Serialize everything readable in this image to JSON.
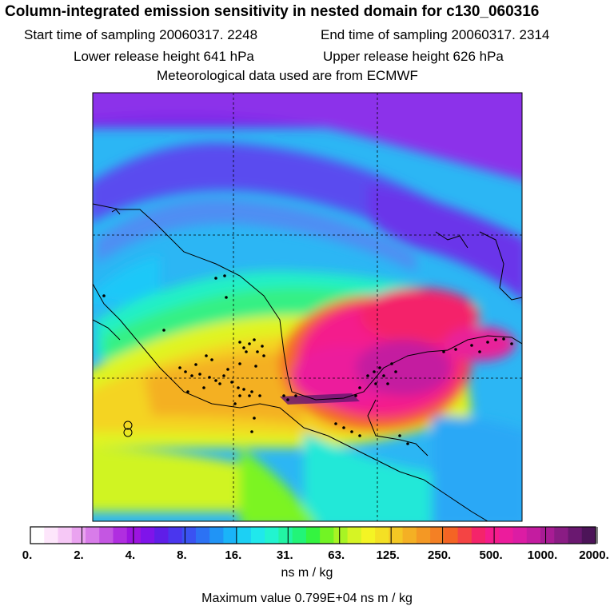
{
  "header": {
    "title": "Column-integrated emission sensitivity in nested domain for c130_060316",
    "start_label": "Start time of sampling 20060317.  2248",
    "end_label": "End time of sampling 20060317.  2314",
    "lower_label": "Lower release height  641 hPa",
    "upper_label": "Upper release height  626 hPa",
    "met_label": "Meteorological data used are from ECMWF"
  },
  "legend": {
    "ticks": [
      "0.",
      "2.",
      "4.",
      "8.",
      "16.",
      "31.",
      "63.",
      "125.",
      "250.",
      "500.",
      "1000.",
      "2000."
    ],
    "colors": [
      "#ffffff",
      "#fde6fb",
      "#f6c8f6",
      "#eaa3f0",
      "#d87ce9",
      "#c456e2",
      "#b02ee0",
      "#9c14e0",
      "#7f14ea",
      "#5f1ee8",
      "#4a36ee",
      "#3a52f2",
      "#2c72f4",
      "#2094f6",
      "#1ab4f8",
      "#1cd0f4",
      "#20e8ec",
      "#22f4d0",
      "#22f4a4",
      "#22f478",
      "#34f440",
      "#72f424",
      "#a8f424",
      "#d6f424",
      "#f4f424",
      "#f4e024",
      "#f4c824",
      "#f4b024",
      "#f49824",
      "#f48024",
      "#f46424",
      "#f44444",
      "#f4246a",
      "#f41c8c",
      "#ec1c9c",
      "#dc1ca4",
      "#c41ca0",
      "#a81c94",
      "#8a1c84",
      "#6a1870",
      "#4c1458"
    ],
    "unit": "ns m / kg",
    "max_label": "Maximum value  0.799E+04 ns m / kg"
  },
  "chart_data": {
    "type": "heatmap",
    "title": "Column-integrated emission sensitivity in nested domain for c130_060316",
    "colorbar_values": [
      0,
      2,
      4,
      8,
      16,
      31,
      63,
      125,
      250,
      500,
      1000,
      2000
    ],
    "unit": "ns m / kg",
    "max_value": 7990
  }
}
